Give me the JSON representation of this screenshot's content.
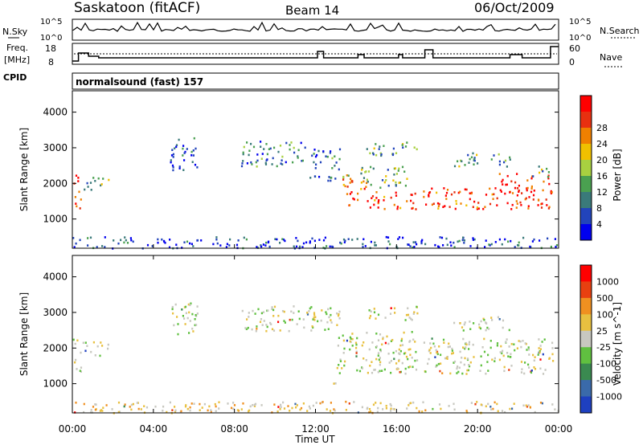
{
  "header": {
    "station": "Saskatoon (fitACF)",
    "beam": "Beam 14",
    "date": "06/Oct/2009"
  },
  "panels": {
    "nsky": {
      "label": "N.Sky",
      "right_label": "N.Search",
      "left_ticks": [
        "10^5",
        "10^0"
      ],
      "right_ticks": [
        "10^5",
        "10^0"
      ]
    },
    "freq": {
      "label": "Freq.",
      "unit": "[MHz]",
      "left_ticks": [
        "18",
        "8"
      ],
      "right_label": "Nave",
      "right_ticks": [
        "60",
        "0"
      ]
    },
    "cpid": {
      "label": "CPID",
      "text": "normalsound (fast) 157"
    }
  },
  "chart_data": [
    {
      "type": "heatmap",
      "name": "power",
      "ylabel": "Slant Range [km]",
      "xlabel": "Time UT",
      "ylim": [
        180,
        4600
      ],
      "yticks": [
        "1000",
        "2000",
        "3000",
        "4000"
      ],
      "xticks": [
        "00:00",
        "04:00",
        "08:00",
        "12:00",
        "16:00",
        "20:00",
        "00:00"
      ],
      "colorbar": {
        "label": "Power [dB]",
        "ticks": [
          "4",
          "8",
          "12",
          "16",
          "20",
          "24",
          "28"
        ],
        "colors": [
          "#0000ee",
          "#2244bb",
          "#3a7a7a",
          "#4aa050",
          "#a8d040",
          "#f0c000",
          "#f08000",
          "#e83010",
          "#ff0000"
        ]
      },
      "regions": [
        {
          "t": [
            0.0,
            0.4
          ],
          "r": [
            1300,
            2300
          ],
          "level": 0.8
        },
        {
          "t": [
            0.5,
            1.2
          ],
          "r": [
            1800,
            2200
          ],
          "level": 0.3
        },
        {
          "t": [
            1.2,
            1.8
          ],
          "r": [
            1900,
            2200
          ],
          "level": 0.45
        },
        {
          "t": [
            4.8,
            6.2
          ],
          "r": [
            2400,
            3300
          ],
          "level": 0.2
        },
        {
          "t": [
            8.3,
            11.5
          ],
          "r": [
            2500,
            3200
          ],
          "level": 0.3
        },
        {
          "t": [
            11.7,
            13.2
          ],
          "r": [
            2100,
            3000
          ],
          "level": 0.25
        },
        {
          "t": [
            13.0,
            13.8
          ],
          "r": [
            1900,
            2400
          ],
          "level": 0.6
        },
        {
          "t": [
            13.5,
            14.5
          ],
          "r": [
            1400,
            2100
          ],
          "level": 0.85
        },
        {
          "t": [
            14.5,
            17.0
          ],
          "r": [
            1300,
            1800
          ],
          "level": 0.85
        },
        {
          "t": [
            14.2,
            16.5
          ],
          "r": [
            1900,
            2500
          ],
          "level": 0.4
        },
        {
          "t": [
            14.5,
            17.0
          ],
          "r": [
            2800,
            3200
          ],
          "level": 0.35
        },
        {
          "t": [
            17.3,
            21.0
          ],
          "r": [
            1300,
            1900
          ],
          "level": 0.85
        },
        {
          "t": [
            18.8,
            21.6
          ],
          "r": [
            2500,
            2900
          ],
          "level": 0.35
        },
        {
          "t": [
            21.0,
            23.7
          ],
          "r": [
            1300,
            2300
          ],
          "level": 0.9
        },
        {
          "t": [
            22.6,
            23.6
          ],
          "r": [
            2200,
            2500
          ],
          "level": 0.4
        },
        {
          "t": [
            0.0,
            24.0
          ],
          "r": [
            200,
            520
          ],
          "level": 0.15
        }
      ]
    },
    {
      "type": "heatmap",
      "name": "velocity",
      "ylabel": "Slant Range [km]",
      "xlabel": "Time UT",
      "ylim": [
        180,
        4600
      ],
      "yticks": [
        "1000",
        "2000",
        "3000",
        "4000"
      ],
      "xticks": [
        "00:00",
        "04:00",
        "08:00",
        "12:00",
        "16:00",
        "20:00",
        "00:00"
      ],
      "colorbar": {
        "label": "Velocity [m s^-1]",
        "ticks": [
          "1000",
          "500",
          "100",
          "25",
          "-25",
          "-100",
          "-500",
          "-1000"
        ],
        "colors": [
          "#1e40c0",
          "#3a6aaa",
          "#3a8a50",
          "#60c040",
          "#c8c8c0",
          "#e8c040",
          "#f09020",
          "#e84010",
          "#ff0000"
        ]
      },
      "regions": [
        {
          "t": [
            0.0,
            0.4
          ],
          "r": [
            1300,
            2300
          ],
          "level": 0.5
        },
        {
          "t": [
            0.5,
            1.8
          ],
          "r": [
            1800,
            2200
          ],
          "level": 0.5
        },
        {
          "t": [
            4.8,
            6.2
          ],
          "r": [
            2400,
            3300
          ],
          "level": 0.5
        },
        {
          "t": [
            8.3,
            13.2
          ],
          "r": [
            2500,
            3200
          ],
          "level": 0.5
        },
        {
          "t": [
            13.0,
            17.0
          ],
          "r": [
            1300,
            2500
          ],
          "level": 0.5
        },
        {
          "t": [
            14.5,
            17.0
          ],
          "r": [
            2800,
            3200
          ],
          "level": 0.5
        },
        {
          "t": [
            17.3,
            23.7
          ],
          "r": [
            1300,
            2300
          ],
          "level": 0.5
        },
        {
          "t": [
            18.8,
            21.6
          ],
          "r": [
            2500,
            2900
          ],
          "level": 0.5
        },
        {
          "t": [
            12.5,
            13.0
          ],
          "r": [
            1000,
            1150
          ],
          "level": 0.6
        },
        {
          "t": [
            0.0,
            24.0
          ],
          "r": [
            200,
            520
          ],
          "level": 0.6
        }
      ]
    }
  ]
}
